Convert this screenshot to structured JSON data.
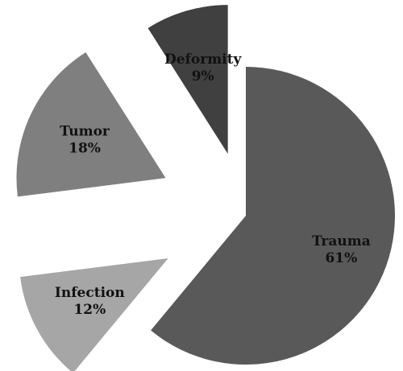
{
  "chart_data": {
    "type": "pie",
    "categories": [
      "Trauma",
      "Infection",
      "Tumor",
      "Deformity"
    ],
    "values": [
      61,
      12,
      18,
      9
    ],
    "value_labels": [
      "61%",
      "12%",
      "18%",
      "9%"
    ],
    "colors": [
      "#595959",
      "#a6a6a6",
      "#7f7f7f",
      "#404040"
    ]
  }
}
